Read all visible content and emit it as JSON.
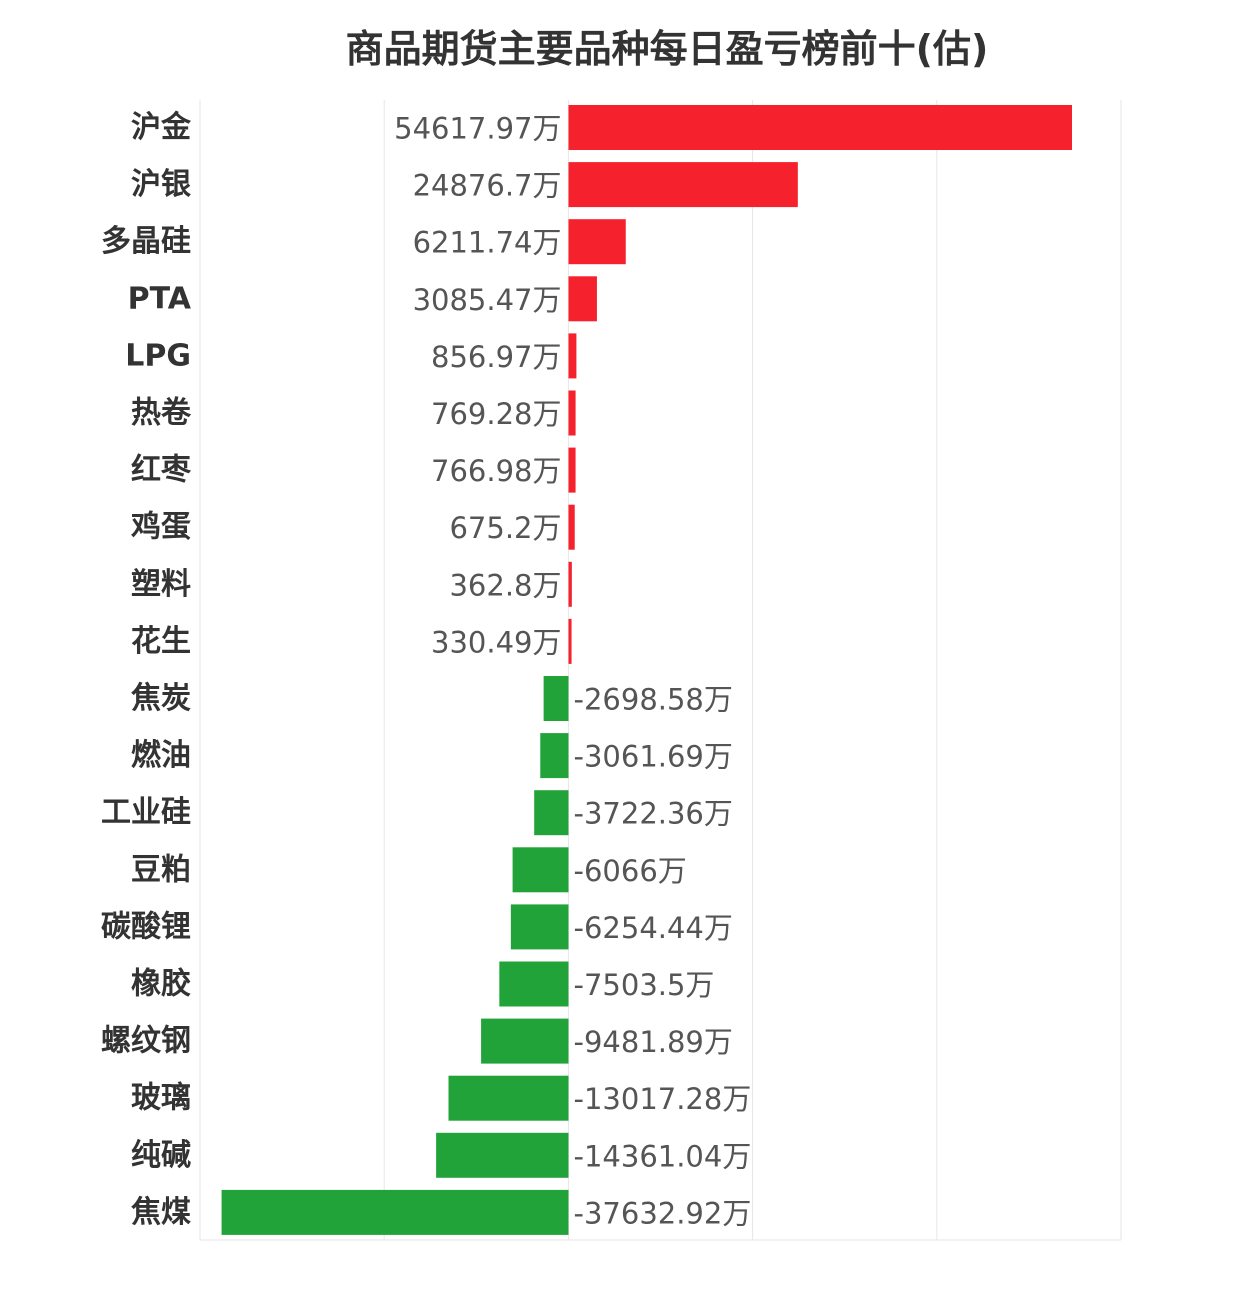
{
  "chart_data": {
    "type": "bar",
    "orientation": "horizontal",
    "title": "商品期货主要品种每日盈亏榜前十(估)",
    "unit": "万",
    "categories": [
      "沪金",
      "沪银",
      "多晶硅",
      "PTA",
      "LPG",
      "热卷",
      "红枣",
      "鸡蛋",
      "塑料",
      "花生",
      "焦炭",
      "燃油",
      "工业硅",
      "豆粕",
      "碳酸锂",
      "橡胶",
      "螺纹钢",
      "玻璃",
      "纯碱",
      "焦煤"
    ],
    "values": [
      54617.97,
      24876.7,
      6211.74,
      3085.47,
      856.97,
      769.28,
      766.98,
      675.2,
      362.8,
      330.49,
      -2698.58,
      -3061.69,
      -3722.36,
      -6066,
      -6254.44,
      -7503.5,
      -9481.89,
      -13017.28,
      -14361.04,
      -37632.92
    ],
    "value_labels": [
      "54617.97万",
      "24876.7万",
      "6211.74万",
      "3085.47万",
      "856.97万",
      "769.28万",
      "766.98万",
      "675.2万",
      "362.8万",
      "330.49万",
      "-2698.58万",
      "-3061.69万",
      "-3722.36万",
      "-6066万",
      "-6254.44万",
      "-7503.5万",
      "-9481.89万",
      "-13017.28万",
      "-14361.04万",
      "-37632.92万"
    ],
    "xlim": [
      -40000,
      60000
    ],
    "grid": true,
    "positive_color": "#f5222d",
    "negative_color": "#22a33a"
  }
}
